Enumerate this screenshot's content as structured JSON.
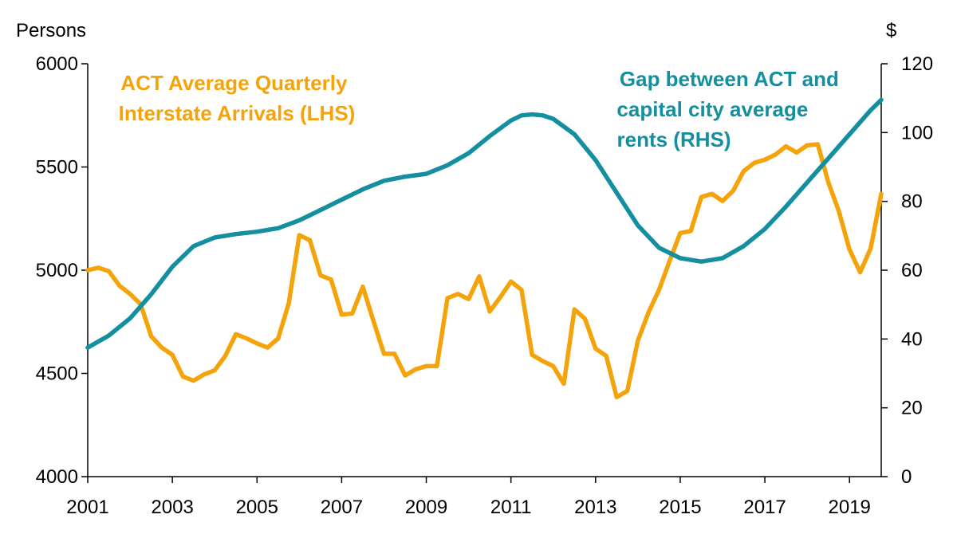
{
  "chart_data": {
    "type": "line",
    "left_axis": {
      "unit_label": "Persons",
      "ylim": [
        4000,
        6000
      ],
      "ticks": [
        4000,
        4500,
        5000,
        5500,
        6000
      ]
    },
    "right_axis": {
      "unit_label": "$",
      "ylim": [
        0,
        120
      ],
      "ticks": [
        0,
        20,
        40,
        60,
        80,
        100,
        120
      ]
    },
    "x_axis": {
      "xlim": [
        2001.0,
        2019.75
      ],
      "ticks": [
        2001,
        2003,
        2005,
        2007,
        2009,
        2011,
        2013,
        2015,
        2017,
        2019
      ],
      "tick_labels": [
        "2001",
        "2003",
        "2005",
        "2007",
        "2009",
        "2011",
        "2013",
        "2015",
        "2017",
        "2019"
      ]
    },
    "grid": false,
    "series": [
      {
        "name": "ACT Average Quarterly Interstate Arrivals (LHS)",
        "label_lines": [
          "ACT Average Quarterly",
          "Interstate Arrivals (LHS)"
        ],
        "axis": "left",
        "color": "#F5A30A",
        "points": [
          [
            2001.0,
            5000
          ],
          [
            2001.25,
            5012
          ],
          [
            2001.5,
            4995
          ],
          [
            2001.75,
            4925
          ],
          [
            2002.0,
            4885
          ],
          [
            2002.25,
            4835
          ],
          [
            2002.5,
            4680
          ],
          [
            2002.75,
            4625
          ],
          [
            2003.0,
            4590
          ],
          [
            2003.25,
            4485
          ],
          [
            2003.5,
            4465
          ],
          [
            2003.75,
            4495
          ],
          [
            2004.0,
            4515
          ],
          [
            2004.25,
            4585
          ],
          [
            2004.5,
            4690
          ],
          [
            2004.75,
            4670
          ],
          [
            2005.0,
            4645
          ],
          [
            2005.25,
            4625
          ],
          [
            2005.5,
            4670
          ],
          [
            2005.75,
            4840
          ],
          [
            2006.0,
            5170
          ],
          [
            2006.25,
            5145
          ],
          [
            2006.5,
            4975
          ],
          [
            2006.75,
            4955
          ],
          [
            2007.0,
            4785
          ],
          [
            2007.25,
            4790
          ],
          [
            2007.5,
            4920
          ],
          [
            2007.75,
            4755
          ],
          [
            2008.0,
            4595
          ],
          [
            2008.25,
            4595
          ],
          [
            2008.5,
            4490
          ],
          [
            2008.75,
            4520
          ],
          [
            2009.0,
            4535
          ],
          [
            2009.25,
            4535
          ],
          [
            2009.5,
            4865
          ],
          [
            2009.75,
            4885
          ],
          [
            2010.0,
            4860
          ],
          [
            2010.25,
            4970
          ],
          [
            2010.5,
            4800
          ],
          [
            2010.75,
            4870
          ],
          [
            2011.0,
            4945
          ],
          [
            2011.25,
            4905
          ],
          [
            2011.5,
            4590
          ],
          [
            2011.75,
            4560
          ],
          [
            2012.0,
            4535
          ],
          [
            2012.25,
            4450
          ],
          [
            2012.5,
            4810
          ],
          [
            2012.75,
            4765
          ],
          [
            2013.0,
            4620
          ],
          [
            2013.25,
            4585
          ],
          [
            2013.5,
            4385
          ],
          [
            2013.75,
            4415
          ],
          [
            2014.0,
            4660
          ],
          [
            2014.25,
            4795
          ],
          [
            2014.5,
            4905
          ],
          [
            2014.75,
            5045
          ],
          [
            2015.0,
            5180
          ],
          [
            2015.25,
            5190
          ],
          [
            2015.5,
            5355
          ],
          [
            2015.75,
            5370
          ],
          [
            2016.0,
            5335
          ],
          [
            2016.25,
            5385
          ],
          [
            2016.5,
            5480
          ],
          [
            2016.75,
            5520
          ],
          [
            2017.0,
            5535
          ],
          [
            2017.25,
            5560
          ],
          [
            2017.5,
            5600
          ],
          [
            2017.75,
            5570
          ],
          [
            2018.0,
            5605
          ],
          [
            2018.25,
            5610
          ],
          [
            2018.5,
            5425
          ],
          [
            2018.75,
            5285
          ],
          [
            2019.0,
            5100
          ],
          [
            2019.25,
            4990
          ],
          [
            2019.5,
            5105
          ],
          [
            2019.75,
            5370
          ]
        ]
      },
      {
        "name": "Gap between ACT and capital city average rents (RHS)",
        "label_lines": [
          "Gap between ACT and",
          "capital city average",
          "rents (RHS)"
        ],
        "axis": "right",
        "color": "#138F9F",
        "points": [
          [
            2001.0,
            37.5
          ],
          [
            2001.5,
            41
          ],
          [
            2002.0,
            46
          ],
          [
            2002.5,
            53
          ],
          [
            2003.0,
            61
          ],
          [
            2003.5,
            67
          ],
          [
            2004.0,
            69.5
          ],
          [
            2004.5,
            70.5
          ],
          [
            2005.0,
            71.2
          ],
          [
            2005.5,
            72.2
          ],
          [
            2006.0,
            74.5
          ],
          [
            2006.5,
            77.5
          ],
          [
            2007.0,
            80.5
          ],
          [
            2007.5,
            83.5
          ],
          [
            2008.0,
            86
          ],
          [
            2008.5,
            87.2
          ],
          [
            2009.0,
            88
          ],
          [
            2009.5,
            90.5
          ],
          [
            2010.0,
            94
          ],
          [
            2010.5,
            99
          ],
          [
            2011.0,
            103.5
          ],
          [
            2011.25,
            105
          ],
          [
            2011.5,
            105.3
          ],
          [
            2011.75,
            105
          ],
          [
            2012.0,
            104
          ],
          [
            2012.5,
            99.5
          ],
          [
            2013.0,
            92
          ],
          [
            2013.5,
            82.5
          ],
          [
            2014.0,
            73
          ],
          [
            2014.5,
            66.5
          ],
          [
            2015.0,
            63.5
          ],
          [
            2015.5,
            62.5
          ],
          [
            2016.0,
            63.5
          ],
          [
            2016.5,
            67
          ],
          [
            2017.0,
            72
          ],
          [
            2017.5,
            78.5
          ],
          [
            2018.0,
            85.5
          ],
          [
            2018.5,
            92.5
          ],
          [
            2019.0,
            99.5
          ],
          [
            2019.5,
            106.5
          ],
          [
            2019.75,
            109.5
          ]
        ]
      }
    ]
  }
}
